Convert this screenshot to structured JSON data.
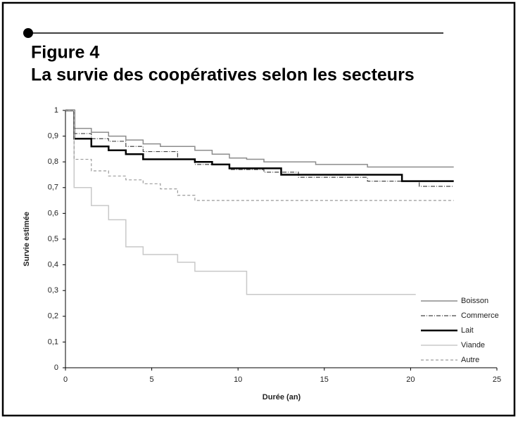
{
  "header": {
    "figure": "Figure 4",
    "title": "La survie des coopératives selon les secteurs"
  },
  "chart_data": {
    "type": "step-line",
    "y_label": "Survie estimée",
    "x_label": "Durée (an)",
    "xlim": [
      0,
      25
    ],
    "xticks": [
      0,
      5,
      10,
      15,
      20,
      25
    ],
    "ylim": [
      0,
      1
    ],
    "yticks": [
      0,
      {
        "value": 0.1,
        "label": "0,1"
      },
      {
        "value": 0.2,
        "label": "0,2"
      },
      {
        "value": 0.3,
        "label": "0,3"
      },
      {
        "value": 0.4,
        "label": "0,4"
      },
      {
        "value": 0.5,
        "label": "0,5"
      },
      {
        "value": 0.6,
        "label": "0,6"
      },
      {
        "value": 0.7,
        "label": "0,7"
      },
      {
        "value": 0.8,
        "label": "0,8"
      },
      {
        "value": 0.9,
        "label": "0,9"
      },
      1
    ],
    "grid": false,
    "legend": "right",
    "series": [
      {
        "name": "Boisson",
        "color": "#8c8c8c",
        "line_style": "solid",
        "x": [
          0,
          0.5,
          1.5,
          2.5,
          3.5,
          4.5,
          5.5,
          7.5,
          8.5,
          9.5,
          10.5,
          11.5,
          14.5,
          17.5,
          22.5
        ],
        "values": [
          1,
          0.93,
          0.915,
          0.9,
          0.885,
          0.87,
          0.86,
          0.845,
          0.83,
          0.815,
          0.81,
          0.8,
          0.79,
          0.78,
          0.78
        ]
      },
      {
        "name": "Commerce",
        "color": "#444444",
        "line_style": "dashdot",
        "x": [
          0,
          0.5,
          1.5,
          2.5,
          3.5,
          4.5,
          6.5,
          7.5,
          9.5,
          11.5,
          13.5,
          17.5,
          20.5,
          22.5
        ],
        "values": [
          1,
          0.91,
          0.89,
          0.88,
          0.86,
          0.84,
          0.81,
          0.79,
          0.77,
          0.76,
          0.74,
          0.725,
          0.705,
          0.705
        ]
      },
      {
        "name": "Lait",
        "color": "#000000",
        "line_style": "bold",
        "x": [
          0,
          0.5,
          1.5,
          2.5,
          3.5,
          4.5,
          7.5,
          8.5,
          9.5,
          12.5,
          19.5,
          22.5
        ],
        "values": [
          1,
          0.89,
          0.86,
          0.845,
          0.83,
          0.81,
          0.8,
          0.79,
          0.775,
          0.75,
          0.725,
          0.725
        ]
      },
      {
        "name": "Viande",
        "color": "#c8c8c8",
        "line_style": "solid",
        "x": [
          0,
          0.5,
          1.5,
          2.5,
          3.5,
          4.5,
          6.5,
          7.5,
          10.5,
          20.3
        ],
        "values": [
          1,
          0.7,
          0.63,
          0.575,
          0.47,
          0.44,
          0.41,
          0.375,
          0.285,
          0.285
        ]
      },
      {
        "name": "Autre",
        "color": "#9a9a9a",
        "line_style": "dashed",
        "x": [
          0,
          0.5,
          1.5,
          2.5,
          3.5,
          4.5,
          5.5,
          6.5,
          7.5,
          22.5
        ],
        "values": [
          1,
          0.81,
          0.765,
          0.745,
          0.73,
          0.715,
          0.695,
          0.67,
          0.65,
          0.65
        ]
      }
    ]
  }
}
